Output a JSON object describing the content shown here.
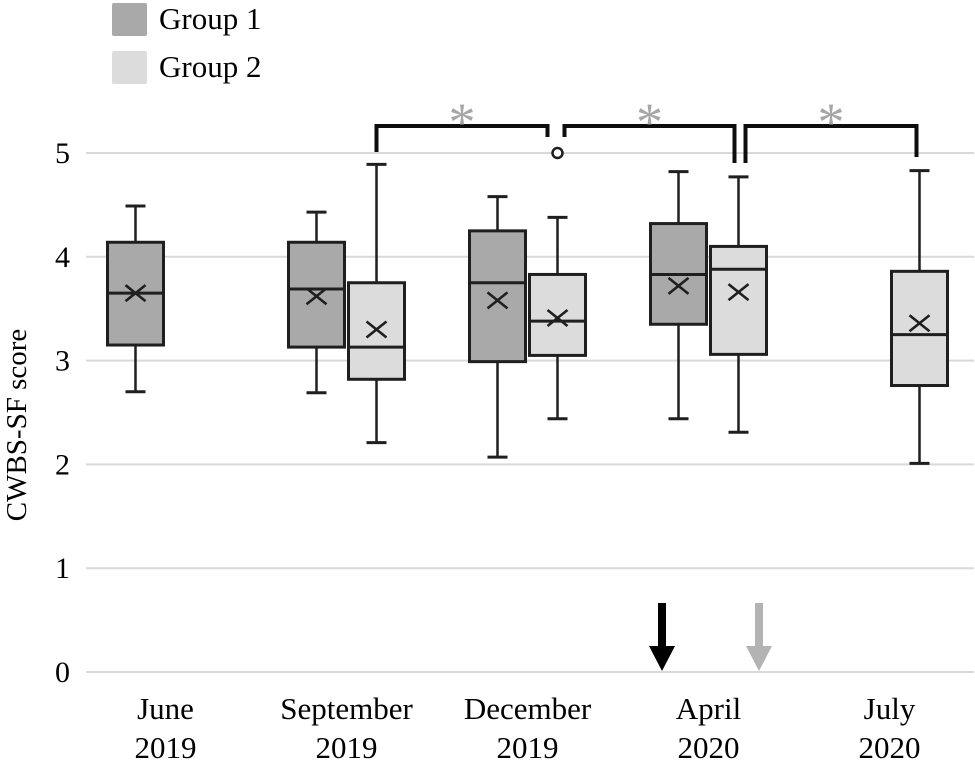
{
  "legend": {
    "items": [
      {
        "label": "Group 1",
        "color": "#a9a9a9"
      },
      {
        "label": "Group 2",
        "color": "#dcdcdc"
      }
    ]
  },
  "chart_data": {
    "type": "boxplot",
    "title": "",
    "xlabel": "",
    "ylabel": "CWBS-SF score",
    "ylim": [
      0,
      5
    ],
    "yticks": [
      0,
      1,
      2,
      3,
      4,
      5
    ],
    "grid": "horizontal",
    "legend_position": "top-left",
    "categories": [
      [
        "June",
        "2019"
      ],
      [
        "September",
        "2019"
      ],
      [
        "December",
        "2019"
      ],
      [
        "April",
        "2020"
      ],
      [
        "July",
        "2020"
      ]
    ],
    "series": [
      {
        "name": "Group 1",
        "fill": "#a9a9a9",
        "boxes": [
          {
            "category": "June 2019",
            "whisker_low": 2.7,
            "q1": 3.15,
            "median": 3.65,
            "q3": 4.14,
            "whisker_high": 4.49,
            "mean": 3.65
          },
          {
            "category": "September 2019",
            "whisker_low": 2.69,
            "q1": 3.13,
            "median": 3.69,
            "q3": 4.14,
            "whisker_high": 4.43,
            "mean": 3.62
          },
          {
            "category": "December 2019",
            "whisker_low": 2.07,
            "q1": 2.99,
            "median": 3.75,
            "q3": 4.25,
            "whisker_high": 4.58,
            "mean": 3.58
          },
          {
            "category": "April 2020",
            "whisker_low": 2.44,
            "q1": 3.35,
            "median": 3.83,
            "q3": 4.32,
            "whisker_high": 4.82,
            "mean": 3.72
          },
          null
        ]
      },
      {
        "name": "Group 2",
        "fill": "#dcdcdc",
        "boxes": [
          null,
          {
            "category": "September 2019",
            "whisker_low": 2.21,
            "q1": 2.82,
            "median": 3.13,
            "q3": 3.75,
            "whisker_high": 4.89,
            "mean": 3.3
          },
          {
            "category": "December 2019",
            "whisker_low": 2.44,
            "q1": 3.05,
            "median": 3.38,
            "q3": 3.83,
            "whisker_high": 4.38,
            "mean": 3.41,
            "outliers": [
              5.0
            ]
          },
          {
            "category": "April 2020",
            "whisker_low": 2.31,
            "q1": 3.06,
            "median": 3.88,
            "q3": 4.1,
            "whisker_high": 4.77,
            "mean": 3.66
          },
          {
            "category": "July 2020",
            "whisker_low": 2.01,
            "q1": 2.76,
            "median": 3.25,
            "q3": 3.86,
            "whisker_high": 4.83,
            "mean": 3.36
          }
        ]
      }
    ],
    "annotations": {
      "significance_brackets": [
        {
          "label": "*",
          "from_category": "September 2019",
          "from_series": "Group 2",
          "to_category": "December 2019",
          "to_series": "Group 2"
        },
        {
          "label": "*",
          "from_category": "December 2019",
          "from_series": "Group 2",
          "to_category": "April 2020",
          "to_series": "Group 2"
        },
        {
          "label": "*",
          "from_category": "April 2020",
          "from_series": "Group 2",
          "to_category": "July 2020",
          "to_series": "Group 2"
        }
      ],
      "outlier_symbol": "°",
      "arrows": [
        {
          "name": "black-arrow",
          "color": "#000000",
          "points_to": "x-axis below April 2020 Group 1"
        },
        {
          "name": "gray-arrow",
          "color": "#b3b3b3",
          "points_to": "x-axis below right of April 2020 Group 2"
        }
      ]
    },
    "colors": {
      "box_border": "#1f1f1f",
      "gridline": "#d9d9d9",
      "significance": "#a6a6a6",
      "text": "#000000"
    }
  }
}
